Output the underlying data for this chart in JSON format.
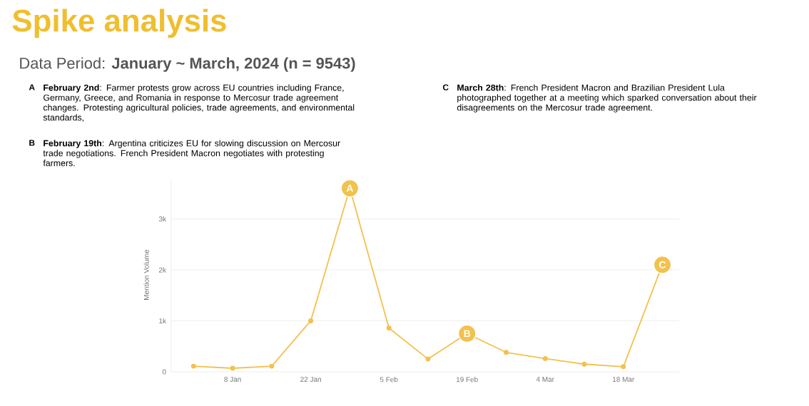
{
  "chart_data": {
    "type": "line",
    "title": "Spike analysis",
    "subtitle": "Data Period: **January ~ March, 2024 (n = 9543)**",
    "ylabel": "Mention Volume",
    "x": [
      "2024-01-01",
      "2024-01-08",
      "2024-01-15",
      "2024-01-22",
      "2024-01-29",
      "2024-02-05",
      "2024-02-12",
      "2024-02-19",
      "2024-02-26",
      "2024-03-04",
      "2024-03-11",
      "2024-03-18",
      "2024-03-25"
    ],
    "series": [
      {
        "color": "#f2c14e",
        "values": [
          110,
          70,
          110,
          1000,
          3600,
          860,
          250,
          750,
          380,
          260,
          150,
          100,
          2100
        ]
      }
    ],
    "xlim": [
      "2023-12-28",
      "2024-03-28"
    ],
    "xticks": [
      {
        "value": "2024-01-08",
        "label": "8 Jan"
      },
      {
        "value": "2024-01-22",
        "label": "22 Jan"
      },
      {
        "value": "2024-02-05",
        "label": "5 Feb"
      },
      {
        "value": "2024-02-19",
        "label": "19 Feb"
      },
      {
        "value": "2024-03-04",
        "label": "4 Mar"
      },
      {
        "value": "2024-03-18",
        "label": "18 Mar"
      }
    ],
    "ylim": [
      0,
      3800
    ],
    "yticks": [
      0,
      {
        "value": 1000,
        "label": "1k"
      },
      {
        "value": 2000,
        "label": "2k"
      },
      {
        "value": 3000,
        "label": "3k"
      }
    ],
    "grid": "y",
    "marker": "circle",
    "line_style": "solid",
    "annotations": [
      {
        "text": "A",
        "x": "2024-01-29",
        "y": 3600
      },
      {
        "text": "B",
        "x": "2024-02-19",
        "y": 750
      },
      {
        "text": "C",
        "x": "2024-03-25",
        "y": 2100
      },
      "**February 2nd**: Farmer protests grow across EU countries including France, Germany, Greece, and Romania in response to Mercosur trade agreement changes.  Protesting agricultural policies, trade agreements, and environmental standards,",
      "**February 19th**: Argentina criticizes EU for slowing discussion on Mercosur trade negotiations. French President Macron negotiates with protesting farmers.",
      "**March 28th**: French President Macron and Brazilian President Lula photographed together at a meeting which sparked conversation about their disagreements on the Mercosur trade agreement."
    ]
  }
}
